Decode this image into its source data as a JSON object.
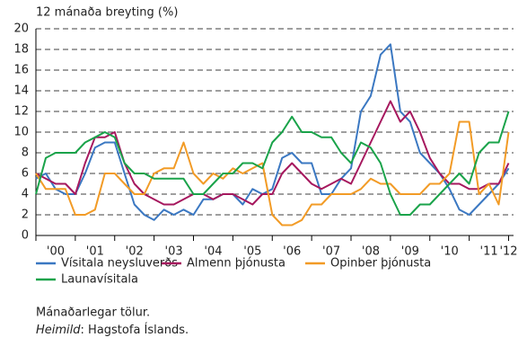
{
  "chart_data": {
    "type": "line",
    "y_axis_label": "12 mánaða breyting (%)",
    "categories": [
      null,
      null,
      "'00",
      null,
      null,
      null,
      "'01",
      null,
      null,
      null,
      "'02",
      null,
      null,
      null,
      "'03",
      null,
      null,
      null,
      "'04",
      null,
      null,
      null,
      "'05",
      null,
      null,
      null,
      "'06",
      null,
      null,
      null,
      "'07",
      null,
      null,
      null,
      "'08",
      null,
      null,
      null,
      "'09",
      null,
      null,
      null,
      "'10",
      null,
      null,
      null,
      "'11",
      null,
      "'12"
    ],
    "series": [
      {
        "name": "Vísitala neysluverðs",
        "color": "#3b78c2",
        "values": [
          5.5,
          6,
          4.5,
          4,
          4,
          6,
          8.5,
          9,
          9,
          6,
          3,
          2,
          1.5,
          2.5,
          2,
          2.5,
          2,
          3.5,
          3.5,
          4,
          4,
          3,
          4.5,
          4,
          4.5,
          7.5,
          8,
          7,
          7,
          4,
          4,
          5.5,
          6.5,
          12,
          13.5,
          17.5,
          18.5,
          12,
          11,
          8,
          7,
          6,
          4.5,
          2.5,
          2,
          3,
          4,
          5,
          6.5
        ]
      },
      {
        "name": "Almenn þjónusta",
        "color": "#a6185e",
        "values": [
          6,
          5.5,
          5,
          5,
          4,
          7,
          9.5,
          9.5,
          10,
          7,
          5,
          4,
          3.5,
          3,
          3,
          3.5,
          4,
          4,
          3.5,
          4,
          4,
          3.5,
          3,
          4,
          4,
          6,
          7,
          6,
          5,
          4.5,
          5,
          5.5,
          5,
          7,
          9,
          11,
          13,
          11,
          12,
          10,
          7.5,
          6,
          5,
          5,
          4.5,
          4.5,
          5,
          5,
          7
        ]
      },
      {
        "name": "Opinber þjónusta",
        "color": "#f29b26",
        "values": [
          6,
          4.5,
          4.5,
          4.5,
          2,
          2,
          2.5,
          6,
          6,
          5,
          4,
          4,
          6,
          6.5,
          6.5,
          9,
          6,
          5,
          6,
          5.5,
          6.5,
          6,
          6.5,
          7,
          2,
          1,
          1,
          1.5,
          3,
          3,
          4,
          4,
          4,
          4.5,
          5.5,
          5,
          5,
          4,
          4,
          4,
          5,
          5,
          6,
          11,
          11,
          4,
          5,
          3,
          10
        ]
      },
      {
        "name": "Launavísitala",
        "color": "#1aa34a",
        "values": [
          4,
          7.5,
          8,
          8,
          8,
          9,
          9.5,
          10,
          9.5,
          7,
          6,
          6,
          5.5,
          5.5,
          5.5,
          5.5,
          4,
          4,
          5,
          6,
          6,
          7,
          7,
          6.5,
          9,
          10,
          11.5,
          10,
          10,
          9.5,
          9.5,
          8,
          7,
          9,
          8.5,
          7,
          4,
          2,
          2,
          3,
          3,
          4,
          5,
          6,
          5,
          8,
          9,
          9,
          12
        ]
      }
    ],
    "ylim": [
      0,
      20
    ],
    "yticks": [
      0,
      2,
      4,
      6,
      8,
      10,
      12,
      14,
      16,
      18,
      20
    ],
    "grid": true,
    "note": "Mánaðarlegar tölur.",
    "source_label": "Heimild",
    "source_text": ": Hagstofa Íslands."
  }
}
